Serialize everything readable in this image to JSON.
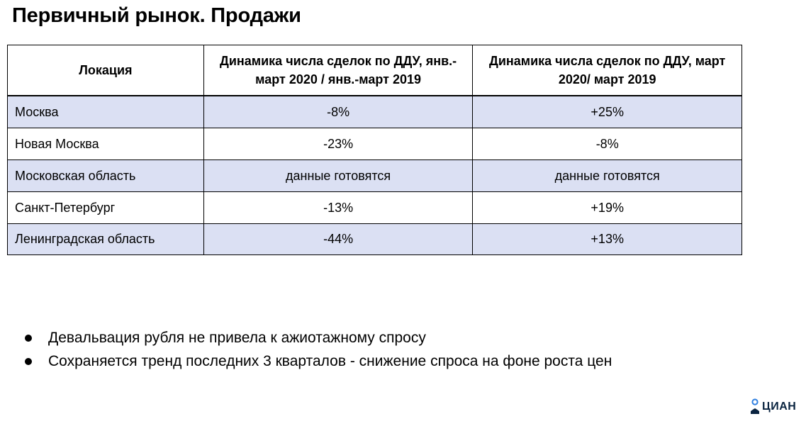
{
  "title": "Первичный рынок. Продажи",
  "table": {
    "headers": [
      "Локация",
      "Динамика числа сделок по ДДУ, янв.-март 2020 / янв.-март 2019",
      "Динамика числа сделок по ДДУ, март 2020/ март 2019"
    ],
    "rows": [
      [
        "Москва",
        "-8%",
        "+25%"
      ],
      [
        "Новая Москва",
        "-23%",
        "-8%"
      ],
      [
        "Московская область",
        "данные готовятся",
        "данные готовятся"
      ],
      [
        "Санкт-Петербург",
        "-13%",
        "+19%"
      ],
      [
        "Ленинградская область",
        "-44%",
        "+13%"
      ]
    ]
  },
  "bullets": [
    "Девальвация рубля не привела к ажиотажному спросу",
    "Сохраняется тренд последних 3 кварталов - снижение спроса на фоне роста цен"
  ],
  "logo": {
    "text": "ЦИАН",
    "icon": "cian-logo-icon",
    "color": "#0a2440",
    "accent_color": "#2f7fe0"
  },
  "colors": {
    "row_shade": "#dbe0f3"
  }
}
